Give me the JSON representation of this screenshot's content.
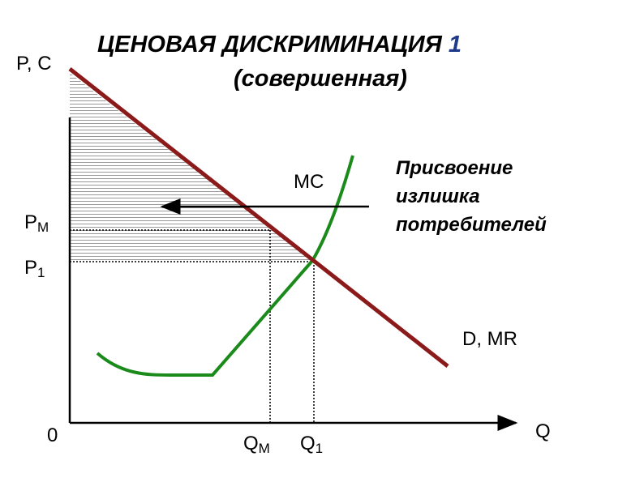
{
  "header": {
    "title": "ЦЕНОВАЯ ДИСКРИМИНАЦИЯ",
    "title_number": "1",
    "subtitle": "(совершенная)"
  },
  "axes": {
    "y_label": "P, C",
    "x_label": "Q",
    "origin": "0"
  },
  "price_labels": [
    {
      "main": "P",
      "sub": "М"
    },
    {
      "main": "P",
      "sub": "1"
    }
  ],
  "quantity_labels": [
    {
      "main": "Q",
      "sub": "М"
    },
    {
      "main": "Q",
      "sub": "1"
    }
  ],
  "curves": {
    "mc": "MC",
    "demand": "D, MR"
  },
  "annotation": [
    "Присвоение",
    "излишка",
    "потребителей"
  ]
}
